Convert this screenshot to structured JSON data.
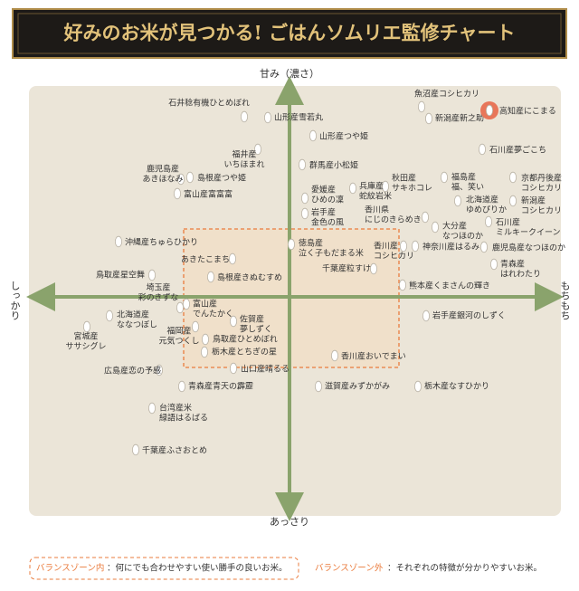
{
  "header": {
    "title": "好みのお米が見つかる! ごはんソムリエ監修チャート"
  },
  "axes": {
    "top": "甘み（濃さ）",
    "bottom": "あっさり",
    "left": "しっかり",
    "right": "もちもち"
  },
  "nodes": [
    {
      "label": [
        "石井稔有機ひとめぼれ"
      ]
    },
    {
      "label": [
        "山形産雪若丸"
      ]
    },
    {
      "label": [
        "魚沼産コシヒカリ"
      ]
    },
    {
      "label": [
        "新潟産新之助"
      ]
    },
    {
      "label": [
        "高知産にこまる"
      ],
      "highlighted": true
    },
    {
      "label": [
        "山形産つや姫"
      ]
    },
    {
      "label": [
        "石川産夢ごこち"
      ]
    },
    {
      "label": [
        "福井産",
        "いちほまれ"
      ]
    },
    {
      "label": [
        "鹿児島産",
        "あきほなみ"
      ]
    },
    {
      "label": [
        "島根産つや姫"
      ]
    },
    {
      "label": [
        "群馬産小松姫"
      ]
    },
    {
      "label": [
        "富山産富富富"
      ]
    },
    {
      "label": [
        "秋田産",
        "サキホコレ"
      ]
    },
    {
      "label": [
        "福島産",
        "福、笑い"
      ]
    },
    {
      "label": [
        "京都丹後産",
        "コシヒカリ"
      ]
    },
    {
      "label": [
        "愛媛産",
        "ひめの凜"
      ]
    },
    {
      "label": [
        "兵庫産",
        "蛇紋岩米"
      ]
    },
    {
      "label": [
        "北海道産",
        "ゆめぴりか"
      ]
    },
    {
      "label": [
        "新潟産",
        "コシヒカリ"
      ]
    },
    {
      "label": [
        "岩手産",
        "金色の風"
      ]
    },
    {
      "label": [
        "香川県",
        "にじのきらめき"
      ]
    },
    {
      "label": [
        "大分産",
        "なつほのか"
      ]
    },
    {
      "label": [
        "石川産",
        "ミルキークイーン"
      ]
    },
    {
      "label": [
        "沖縄産ちゅらひかり"
      ]
    },
    {
      "label": [
        "徳島産",
        "泣く子もだまる米"
      ]
    },
    {
      "label": [
        "香川産",
        "コシヒカリ"
      ]
    },
    {
      "label": [
        "神奈川産はるみ"
      ]
    },
    {
      "label": [
        "鹿児島産なつほのか"
      ]
    },
    {
      "label": [
        "あきたこまち"
      ]
    },
    {
      "label": [
        "青森産",
        "はれわたり"
      ]
    },
    {
      "label": [
        "鳥取産星空舞"
      ]
    },
    {
      "label": [
        "島根産きぬむすめ"
      ]
    },
    {
      "label": [
        "千葉産粒すけ"
      ]
    },
    {
      "label": [
        "埼玉産",
        "彩のきずな"
      ]
    },
    {
      "label": [
        "熊本産くまさんの輝き"
      ]
    },
    {
      "label": [
        "富山産",
        "でんたかく"
      ]
    },
    {
      "label": [
        "北海道産",
        "ななつぼし"
      ]
    },
    {
      "label": [
        "佐賀産",
        "夢しずく"
      ]
    },
    {
      "label": [
        "岩手産銀河のしずく"
      ]
    },
    {
      "label": [
        "宮城産",
        "ササシグレ"
      ]
    },
    {
      "label": [
        "福岡産",
        "元気つくし"
      ]
    },
    {
      "label": [
        "鳥取産ひとめぼれ"
      ]
    },
    {
      "label": [
        "栃木産とちぎの星"
      ]
    },
    {
      "label": [
        "香川産おいでまい"
      ]
    },
    {
      "label": [
        "山口産晴るる"
      ]
    },
    {
      "label": [
        "広島産恋の予感"
      ]
    },
    {
      "label": [
        "青森産青天の霹靂"
      ]
    },
    {
      "label": [
        "滋賀産みずかがみ"
      ]
    },
    {
      "label": [
        "栃木産なすひかり"
      ]
    },
    {
      "label": [
        "台湾産米",
        "緑語はるばる"
      ]
    },
    {
      "label": [
        "千葉産ふさおとめ"
      ]
    }
  ],
  "legend": {
    "inside_label": "バランスゾーン内",
    "inside_text": "：何にでも合わせやすい使い勝手の良いお米。",
    "outside_label": "バランスゾーン外",
    "outside_text": "：それぞれの特徴が分かりやすいお米。"
  }
}
